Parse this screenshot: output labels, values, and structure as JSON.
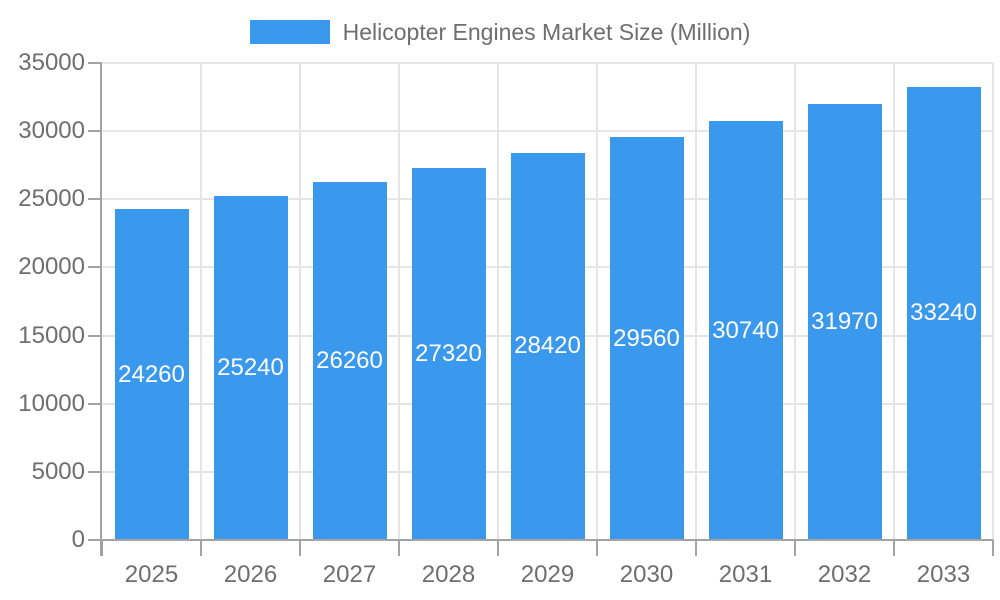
{
  "legend": {
    "label": "Helicopter Engines Market Size (Million)"
  },
  "chart_data": {
    "type": "bar",
    "title": "Helicopter Engines Market Size (Million)",
    "xlabel": "",
    "ylabel": "",
    "categories": [
      "2025",
      "2026",
      "2027",
      "2028",
      "2029",
      "2030",
      "2031",
      "2032",
      "2033"
    ],
    "series": [
      {
        "name": "Helicopter Engines Market Size (Million)",
        "values": [
          24260,
          25240,
          26260,
          27320,
          28420,
          29560,
          30740,
          31970,
          33240
        ]
      }
    ],
    "value_labels_shown": true,
    "ylim": [
      0,
      35000
    ],
    "yticks": [
      0,
      5000,
      10000,
      15000,
      20000,
      25000,
      30000,
      35000
    ],
    "grid": true,
    "legend_position": "top-center",
    "colors": {
      "bar": "#3A99EC",
      "value_label": "#FFFFFF",
      "axis_text": "#6E6E6E",
      "gridline": "#E5E5E5",
      "axis_line": "#A3A3A3",
      "background": "#FFFFFF"
    }
  }
}
